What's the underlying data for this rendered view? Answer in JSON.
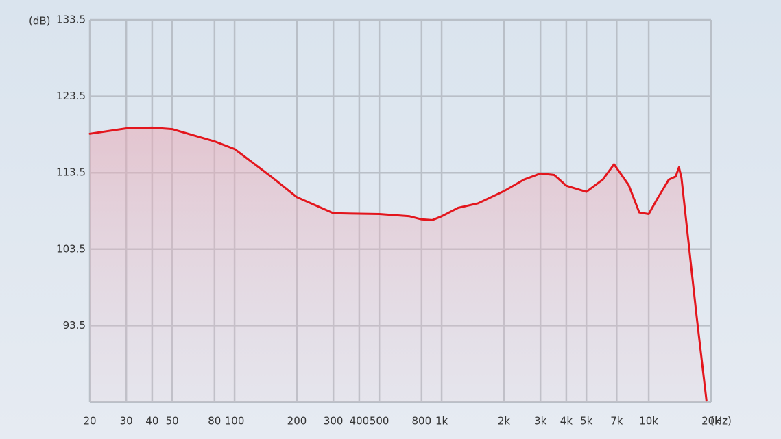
{
  "chart_data": {
    "type": "line",
    "x_label": "(Hz)",
    "y_label": "(dB)",
    "xscale": "log",
    "grid": true,
    "color": "#e3161d",
    "xlim": [
      20,
      20000
    ],
    "ylim": [
      83.5,
      133.5
    ],
    "xticks": [
      20,
      30,
      40,
      50,
      80,
      100,
      200,
      300,
      400,
      500,
      800,
      {
        "value": 1000,
        "label": "1k"
      },
      {
        "value": 2000,
        "label": "2k"
      },
      {
        "value": 3000,
        "label": "3k"
      },
      {
        "value": 4000,
        "label": "4k"
      },
      {
        "value": 5000,
        "label": "5k"
      },
      {
        "value": 7000,
        "label": "7k"
      },
      {
        "value": 10000,
        "label": "10k"
      },
      {
        "value": 20000,
        "label": "20k"
      }
    ],
    "yticks": [
      93.5,
      103.5,
      113.5,
      123.5,
      133.5
    ],
    "x": [
      20,
      30,
      40,
      50,
      80,
      100,
      150,
      200,
      300,
      500,
      700,
      800,
      900,
      1000,
      1200,
      1500,
      2000,
      2500,
      3000,
      3500,
      4000,
      5000,
      6000,
      6800,
      8000,
      9000,
      10000,
      11000,
      12500,
      13500,
      14000,
      14400,
      17000,
      19000
    ],
    "values": [
      118.6,
      119.3,
      119.4,
      119.2,
      117.6,
      116.6,
      113.0,
      110.3,
      108.2,
      108.1,
      107.8,
      107.4,
      107.3,
      107.8,
      108.9,
      109.5,
      111.1,
      112.6,
      113.4,
      113.2,
      111.8,
      111.0,
      112.6,
      114.6,
      111.9,
      108.3,
      108.1,
      110.1,
      112.6,
      113.0,
      114.2,
      112.8,
      94.9,
      83.7
    ]
  }
}
